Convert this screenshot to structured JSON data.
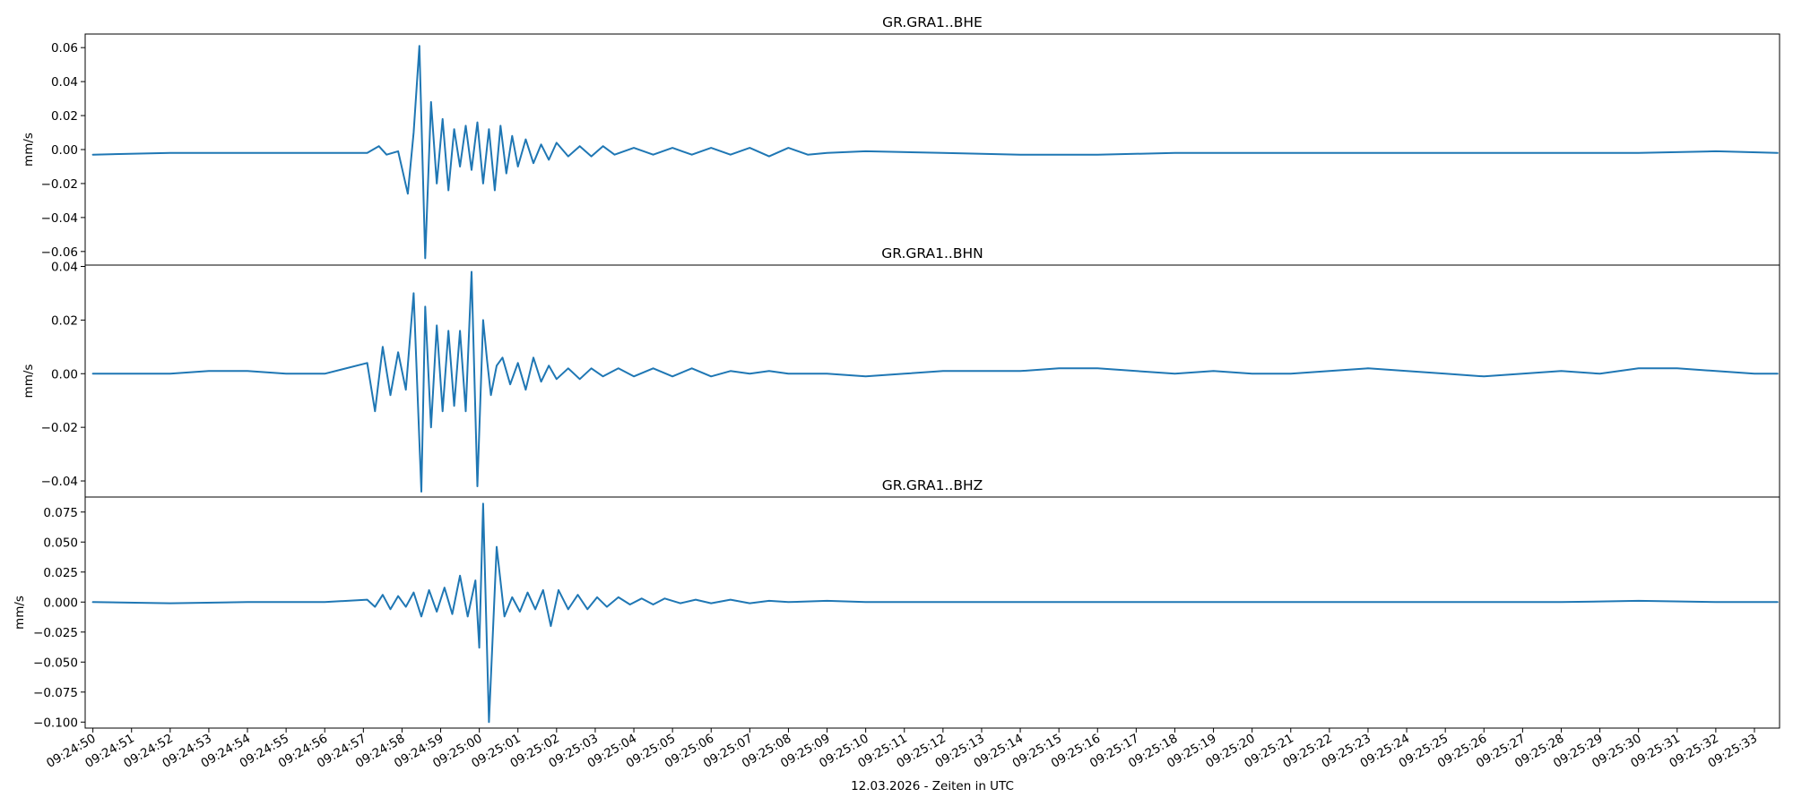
{
  "chart_data": [
    {
      "type": "line",
      "title": "GR.GRA1..BHE",
      "ylabel": "mm/s",
      "ylim": [
        -0.068,
        0.068
      ],
      "yticks": [
        -0.06,
        -0.04,
        -0.02,
        0.0,
        0.02,
        0.04,
        0.06
      ],
      "ytick_labels": [
        "−0.06",
        "−0.04",
        "−0.02",
        "0.00",
        "0.02",
        "0.04",
        "0.06"
      ],
      "series": [
        {
          "x": [
            0,
            2,
            4,
            6,
            7.1,
            7.4,
            7.6,
            7.9,
            8.15,
            8.3,
            8.45,
            8.6,
            8.75,
            8.9,
            9.05,
            9.2,
            9.35,
            9.5,
            9.65,
            9.8,
            9.95,
            10.1,
            10.25,
            10.4,
            10.55,
            10.7,
            10.85,
            11,
            11.2,
            11.4,
            11.6,
            11.8,
            12,
            12.3,
            12.6,
            12.9,
            13.2,
            13.5,
            14,
            14.5,
            15,
            15.5,
            16,
            16.5,
            17,
            17.5,
            18,
            18.5,
            19,
            20,
            22,
            24,
            26,
            28,
            30,
            32,
            34,
            36,
            38,
            40,
            42,
            43.6
          ],
          "y": [
            -0.003,
            -0.002,
            -0.002,
            -0.002,
            -0.002,
            0.002,
            -0.003,
            -0.001,
            -0.026,
            0.01,
            0.061,
            -0.064,
            0.028,
            -0.02,
            0.018,
            -0.024,
            0.012,
            -0.01,
            0.014,
            -0.012,
            0.016,
            -0.02,
            0.012,
            -0.024,
            0.014,
            -0.014,
            0.008,
            -0.01,
            0.006,
            -0.008,
            0.003,
            -0.006,
            0.004,
            -0.004,
            0.002,
            -0.004,
            0.002,
            -0.003,
            0.001,
            -0.003,
            0.001,
            -0.003,
            0.001,
            -0.003,
            0.001,
            -0.004,
            0.001,
            -0.003,
            -0.002,
            -0.001,
            -0.002,
            -0.003,
            -0.003,
            -0.002,
            -0.002,
            -0.002,
            -0.002,
            -0.002,
            -0.002,
            -0.002,
            -0.001,
            -0.002
          ]
        }
      ]
    },
    {
      "type": "line",
      "title": "GR.GRA1..BHN",
      "ylabel": "mm/s",
      "ylim": [
        -0.046,
        0.0405
      ],
      "yticks": [
        -0.04,
        -0.02,
        0.0,
        0.02,
        0.04
      ],
      "ytick_labels": [
        "−0.04",
        "−0.02",
        "0.00",
        "0.02",
        "0.04"
      ],
      "series": [
        {
          "x": [
            0,
            2,
            3,
            4,
            5,
            6,
            7.1,
            7.3,
            7.5,
            7.7,
            7.9,
            8.1,
            8.3,
            8.5,
            8.6,
            8.75,
            8.9,
            9.05,
            9.2,
            9.35,
            9.5,
            9.65,
            9.8,
            9.95,
            10.1,
            10.2,
            10.3,
            10.45,
            10.6,
            10.8,
            11,
            11.2,
            11.4,
            11.6,
            11.8,
            12,
            12.3,
            12.6,
            12.9,
            13.2,
            13.6,
            14,
            14.5,
            15,
            15.5,
            16,
            16.5,
            17,
            17.5,
            18,
            19,
            20,
            21,
            22,
            23,
            24,
            25,
            26,
            27,
            28,
            29,
            30,
            31,
            32,
            33,
            34,
            35,
            36,
            37,
            38,
            39,
            40,
            41,
            42,
            43,
            43.6
          ],
          "y": [
            0.0,
            0.0,
            0.001,
            0.001,
            0.0,
            0.0,
            0.004,
            -0.014,
            0.01,
            -0.008,
            0.008,
            -0.006,
            0.03,
            -0.044,
            0.025,
            -0.02,
            0.018,
            -0.014,
            0.016,
            -0.012,
            0.016,
            -0.014,
            0.038,
            -0.042,
            0.02,
            0.005,
            -0.008,
            0.003,
            0.006,
            -0.004,
            0.004,
            -0.006,
            0.006,
            -0.003,
            0.003,
            -0.002,
            0.002,
            -0.002,
            0.002,
            -0.001,
            0.002,
            -0.001,
            0.002,
            -0.001,
            0.002,
            -0.001,
            0.001,
            0.0,
            0.001,
            0.0,
            0.0,
            -0.001,
            0.0,
            0.001,
            0.001,
            0.001,
            0.002,
            0.002,
            0.001,
            0.0,
            0.001,
            0.0,
            0.0,
            0.001,
            0.002,
            0.001,
            0.0,
            -0.001,
            0.0,
            0.001,
            0.0,
            0.002,
            0.002,
            0.001,
            0.0,
            0.0
          ]
        }
      ]
    },
    {
      "type": "line",
      "title": "GR.GRA1..BHZ",
      "ylabel": "mm/s",
      "ylim": [
        -0.105,
        0.0875
      ],
      "yticks": [
        -0.1,
        -0.075,
        -0.05,
        -0.025,
        0.0,
        0.025,
        0.05,
        0.075
      ],
      "ytick_labels": [
        "−0.100",
        "−0.075",
        "−0.050",
        "−0.025",
        "0.000",
        "0.025",
        "0.050",
        "0.075"
      ],
      "series": [
        {
          "x": [
            0,
            2,
            4,
            6,
            7.1,
            7.3,
            7.5,
            7.7,
            7.9,
            8.1,
            8.3,
            8.5,
            8.7,
            8.9,
            9.1,
            9.3,
            9.5,
            9.7,
            9.9,
            10.0,
            10.1,
            10.25,
            10.45,
            10.65,
            10.85,
            11.05,
            11.25,
            11.45,
            11.65,
            11.85,
            12.05,
            12.3,
            12.55,
            12.8,
            13.05,
            13.3,
            13.6,
            13.9,
            14.2,
            14.5,
            14.8,
            15.2,
            15.6,
            16,
            16.5,
            17,
            17.5,
            18,
            19,
            20,
            22,
            24,
            26,
            28,
            30,
            32,
            34,
            36,
            38,
            40,
            42,
            43.6
          ],
          "y": [
            0.0,
            -0.001,
            0.0,
            0.0,
            0.002,
            -0.004,
            0.006,
            -0.006,
            0.005,
            -0.004,
            0.008,
            -0.012,
            0.01,
            -0.008,
            0.012,
            -0.01,
            0.022,
            -0.012,
            0.018,
            -0.038,
            0.082,
            -0.1,
            0.046,
            -0.012,
            0.004,
            -0.008,
            0.008,
            -0.006,
            0.01,
            -0.02,
            0.01,
            -0.006,
            0.006,
            -0.006,
            0.004,
            -0.004,
            0.004,
            -0.002,
            0.003,
            -0.002,
            0.003,
            -0.001,
            0.002,
            -0.001,
            0.002,
            -0.001,
            0.001,
            0.0,
            0.001,
            0.0,
            0.0,
            0.0,
            0.0,
            0.0,
            0.0,
            0.0,
            0.0,
            0.0,
            0.0,
            0.001,
            0.0,
            0.0
          ]
        }
      ]
    }
  ],
  "x_axis": {
    "xlim": [
      -0.2,
      43.65
    ],
    "xlabel": "12.03.2026 - Zeiten in UTC",
    "tick_labels": [
      "09:24:50",
      "09:24:51",
      "09:24:52",
      "09:24:53",
      "09:24:54",
      "09:24:55",
      "09:24:56",
      "09:24:57",
      "09:24:58",
      "09:24:59",
      "09:25:00",
      "09:25:01",
      "09:25:02",
      "09:25:03",
      "09:25:04",
      "09:25:05",
      "09:25:06",
      "09:25:07",
      "09:25:08",
      "09:25:09",
      "09:25:10",
      "09:25:11",
      "09:25:12",
      "09:25:13",
      "09:25:14",
      "09:25:15",
      "09:25:16",
      "09:25:17",
      "09:25:18",
      "09:25:19",
      "09:25:20",
      "09:25:21",
      "09:25:22",
      "09:25:23",
      "09:25:24",
      "09:25:25",
      "09:25:26",
      "09:25:27",
      "09:25:28",
      "09:25:29",
      "09:25:30",
      "09:25:31",
      "09:25:32",
      "09:25:33"
    ]
  },
  "colors": {
    "trace": "#1f77b4"
  }
}
